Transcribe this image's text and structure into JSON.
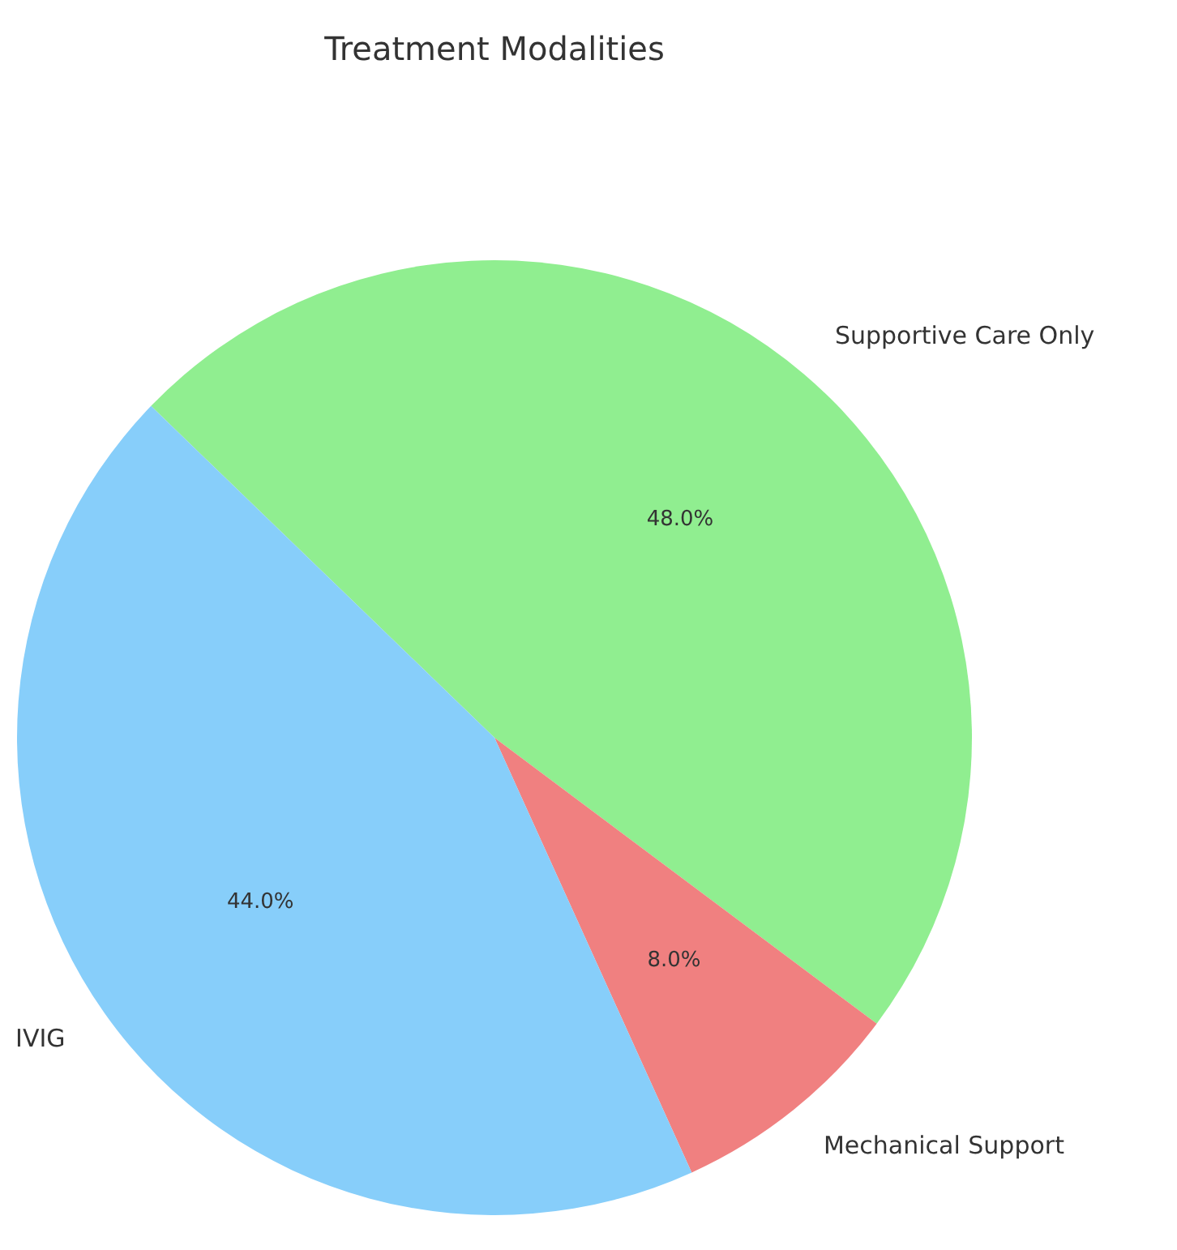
{
  "chart_data": {
    "type": "pie",
    "title": "Treatment Modalities",
    "categories": [
      "Supportive Care Only",
      "Mechanical Support",
      "IVIG"
    ],
    "values": [
      48,
      8,
      44
    ],
    "colors": [
      "#90ee90",
      "#f08080",
      "#87cefa"
    ],
    "value_labels": [
      "48.0%",
      "8.0%",
      "44.0%"
    ],
    "legend": false
  }
}
